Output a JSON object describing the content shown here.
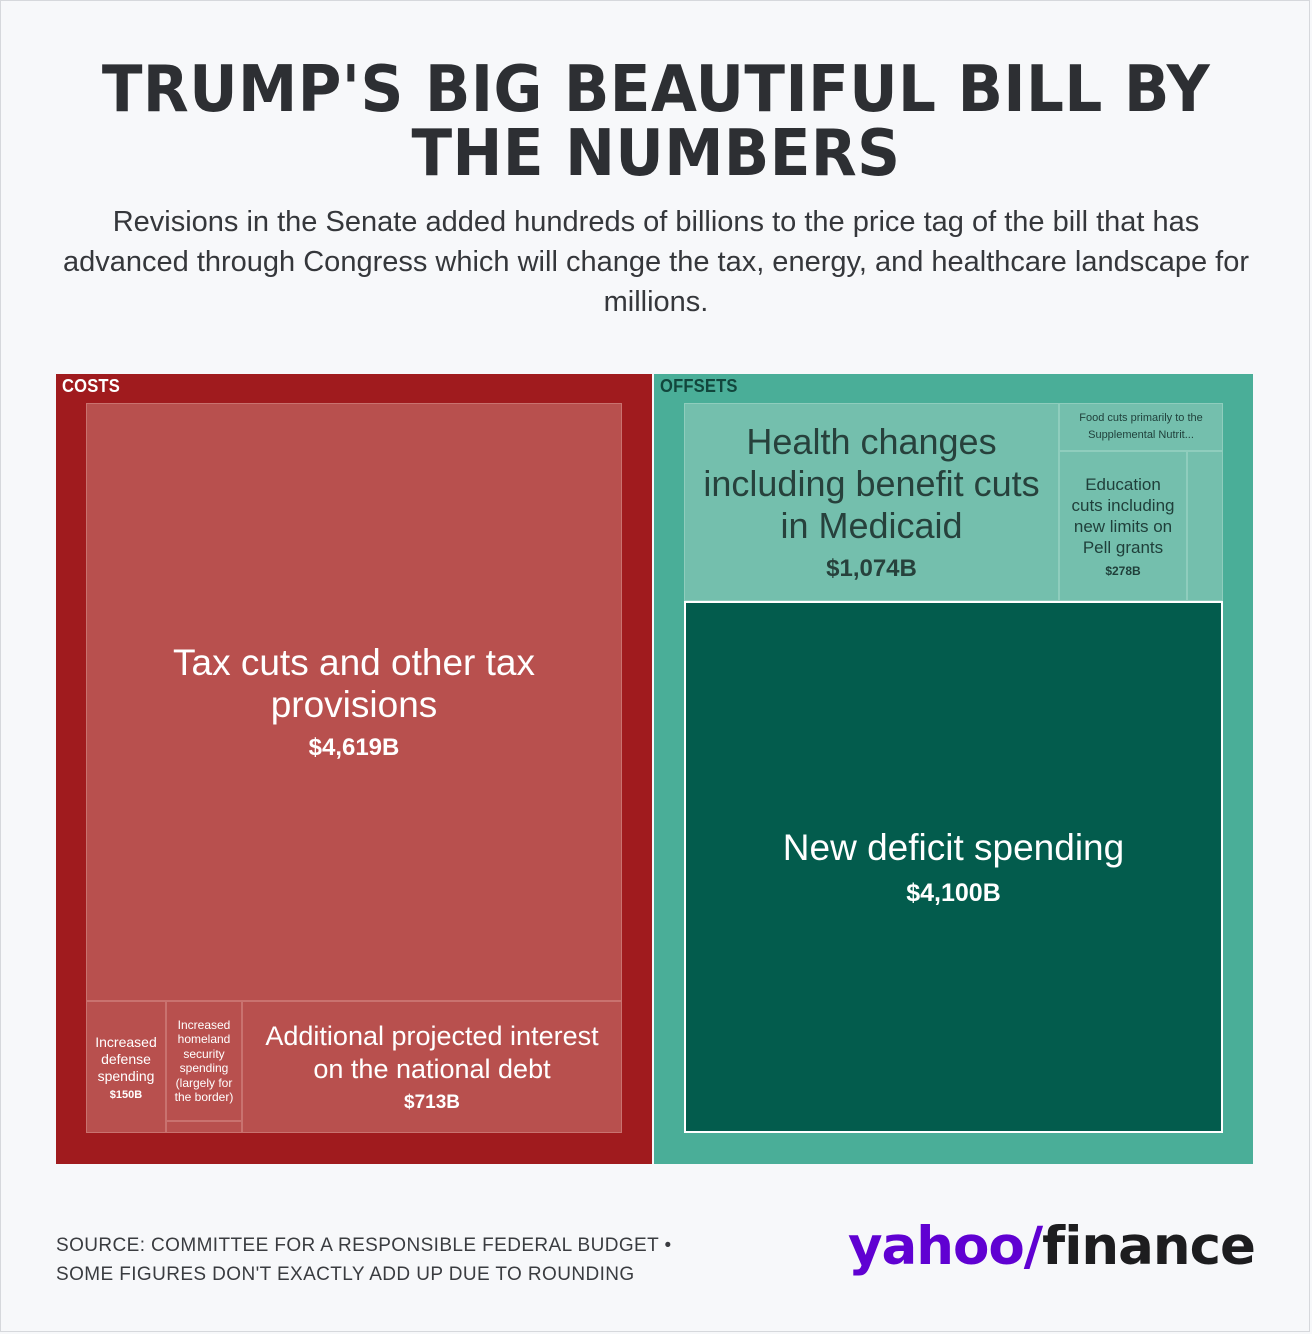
{
  "header": {
    "title": "TRUMP'S BIG BEAUTIFUL BILL BY THE NUMBERS",
    "subtitle": "Revisions in the Senate added hundreds of billions to the price tag of the bill that has advanced through Congress which will change the tax, energy, and healthcare landscape for millions."
  },
  "chart_data": {
    "type": "treemap",
    "unit": "billions of dollars",
    "groups": [
      {
        "name": "COSTS",
        "color": "#a01b1e",
        "items": [
          {
            "label": "Tax cuts and other tax provisions",
            "value": 4619,
            "display": "$4,619B",
            "color": "#b8504e"
          },
          {
            "label": "Additional projected interest on the national debt",
            "value": 713,
            "display": "$713B",
            "color": "#b8504e"
          },
          {
            "label": "Increased defense spending",
            "value": 150,
            "display": "$150B",
            "color": "#b8504e"
          },
          {
            "label": "Increased homeland security spending (largely for the border)",
            "value": null,
            "display": "",
            "color": "#b8504e"
          }
        ]
      },
      {
        "name": "OFFSETS",
        "color": "#4aae98",
        "items": [
          {
            "label": "New deficit spending",
            "value": 4100,
            "display": "$4,100B",
            "color": "#035c4d"
          },
          {
            "label": "Health changes including benefit cuts in Medicaid",
            "value": 1074,
            "display": "$1,074B",
            "color": "#74bfad"
          },
          {
            "label": "Education cuts including new limits on Pell grants",
            "value": 278,
            "display": "$278B",
            "color": "#74bfad"
          },
          {
            "label": "Food cuts primarily to the Supplemental Nutrit...",
            "value": null,
            "display": "",
            "color": "#74bfad"
          }
        ]
      }
    ]
  },
  "footer": {
    "source_line1": "SOURCE: COMMITTEE FOR A RESPONSIBLE FEDERAL BUDGET •",
    "source_line2": "SOME FIGURES DON'T EXACTLY ADD UP DUE TO ROUNDING"
  },
  "logo": {
    "brand": "yahoo/",
    "product": "finance"
  }
}
